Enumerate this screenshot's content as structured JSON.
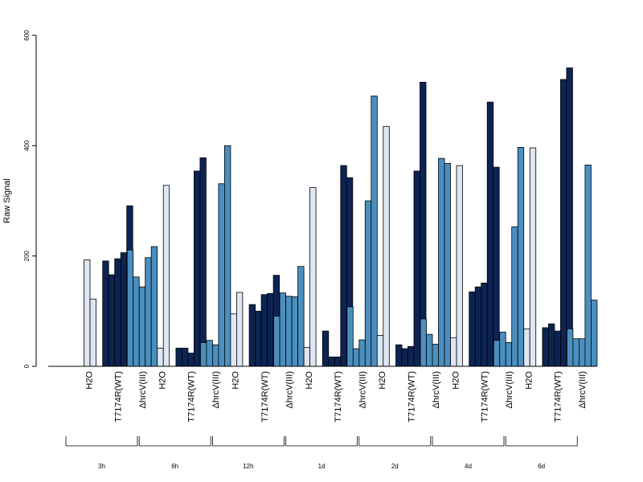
{
  "chart_data": {
    "type": "bar",
    "title": "",
    "ylabel": "Raw Signal",
    "xlabel": "",
    "ylim": [
      0,
      600
    ],
    "yticks": [
      0,
      200,
      400,
      600
    ],
    "grid": false,
    "time_points": [
      "3h",
      "6h",
      "12h",
      "1d",
      "2d",
      "4d",
      "6d"
    ],
    "conditions": [
      "H2O",
      "T717 4R(WT)",
      "ΔhrcV(III)"
    ],
    "condition_labels": [
      "H2O",
      "T7174R(WT)",
      "ΔhrcV(III)"
    ],
    "colors": {
      "H2O": "#dde6f2",
      "T717 4R(WT)": "#0c2454",
      "ΔhrcV(III)": "#4a8fc0"
    },
    "groups": [
      {
        "time": "3h",
        "H2O": [
          0,
          193,
          122
        ],
        "T717 4R(WT)": [
          191,
          166,
          195,
          206,
          291
        ],
        "ΔhrcV(III)": [
          211,
          162,
          144,
          197,
          217
        ]
      },
      {
        "time": "6h",
        "H2O": [
          0,
          33,
          328
        ],
        "T717 4R(WT)": [
          33,
          33,
          24,
          354,
          378
        ],
        "ΔhrcV(III)": [
          43,
          47,
          39,
          331,
          400
        ]
      },
      {
        "time": "12h",
        "H2O": [
          0,
          95,
          134
        ],
        "T717 4R(WT)": [
          112,
          100,
          130,
          132,
          165
        ],
        "ΔhrcV(III)": [
          91,
          133,
          127,
          126,
          181
        ]
      },
      {
        "time": "1d",
        "H2O": [
          0,
          34,
          324
        ],
        "T717 4R(WT)": [
          64,
          17,
          17,
          364,
          342
        ],
        "ΔhrcV(III)": [
          108,
          32,
          48,
          300,
          490
        ]
      },
      {
        "time": "2d",
        "H2O": [
          0,
          56,
          435
        ],
        "T717 4R(WT)": [
          39,
          32,
          36,
          354,
          515
        ],
        "ΔhrcV(III)": [
          86,
          58,
          40,
          377,
          368
        ]
      },
      {
        "time": "4d",
        "H2O": [
          0,
          52,
          364
        ],
        "T717 4R(WT)": [
          135,
          144,
          151,
          479,
          361
        ],
        "ΔhrcV(III)": [
          47,
          62,
          43,
          253,
          397
        ]
      },
      {
        "time": "6d",
        "H2O": [
          0,
          68,
          396
        ],
        "T717 4R(WT)": [
          70,
          77,
          64,
          520,
          541
        ],
        "ΔhrcV(III)": [
          68,
          50,
          50,
          365,
          120
        ]
      }
    ]
  }
}
